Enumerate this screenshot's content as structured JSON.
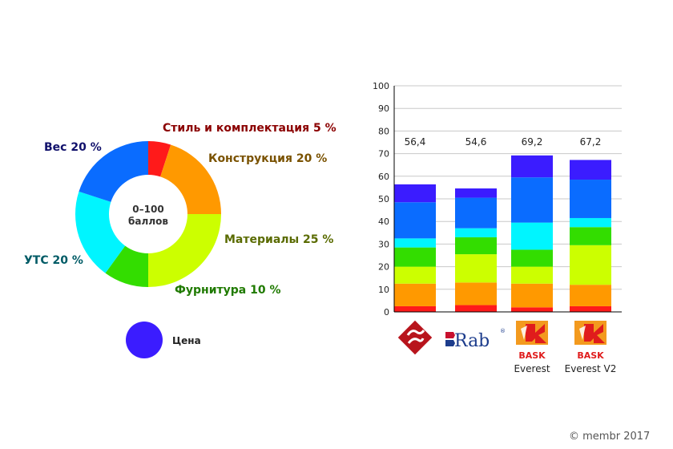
{
  "chart_data": [
    {
      "type": "pie",
      "center_label": [
        "0–100",
        "баллов"
      ],
      "slices": [
        {
          "label": "Стиль и комплектация 5 %",
          "value": 5,
          "color": "#ff1a1a",
          "label_color": "#8b0000"
        },
        {
          "label": "Конструкция 20 %",
          "value": 20,
          "color": "#ff9900",
          "label_color": "#7a5200"
        },
        {
          "label": "Материалы 25 %",
          "value": 25,
          "color": "#ccff00",
          "label_color": "#5a6b00"
        },
        {
          "label": "Фурнитура 10 %",
          "value": 10,
          "color": "#33dd00",
          "label_color": "#1f7a00"
        },
        {
          "label": "УТС 20 %",
          "value": 20,
          "color": "#00f5ff",
          "label_color": "#005b66"
        },
        {
          "label": "Вес 20 %",
          "value": 20,
          "color": "#0a6cff",
          "label_color": "#10106b"
        }
      ]
    },
    {
      "type": "bar",
      "stacked": true,
      "ylim": [
        0,
        100
      ],
      "yticks": [
        0,
        10,
        20,
        30,
        40,
        50,
        60,
        70,
        80,
        90,
        100
      ],
      "categories": [
        "",
        "",
        "Everest",
        "Everest V2"
      ],
      "brand_icons": [
        "red-diamond-logo-icon",
        "rab-logo-icon",
        "bask-logo-icon",
        "bask-logo-icon"
      ],
      "brand_text": {
        "rab": "Rab",
        "rab_mark": "®",
        "bask": "BASK"
      },
      "totals": [
        "56,4",
        "54,6",
        "69,2",
        "67,2"
      ],
      "series": [
        {
          "color": "#ff1a1a",
          "values": [
            2.5,
            3,
            2,
            2.5
          ]
        },
        {
          "color": "#ff9900",
          "values": [
            10,
            10,
            10.5,
            9.5
          ]
        },
        {
          "color": "#ccff00",
          "values": [
            7.5,
            12.5,
            7.5,
            17.5
          ]
        },
        {
          "color": "#33dd00",
          "values": [
            8.5,
            7.5,
            7.5,
            8
          ]
        },
        {
          "color": "#00f5ff",
          "values": [
            4,
            4,
            12,
            4
          ]
        },
        {
          "color": "#0a6cff",
          "values": [
            16,
            13.5,
            20,
            17
          ]
        },
        {
          "color": "#3b1cff",
          "values": [
            7.9,
            4.1,
            9.7,
            8.7
          ]
        }
      ]
    }
  ],
  "legend": {
    "label": "Цена",
    "color": "#3b1cff"
  },
  "copyright": {
    "prefix": "© membr",
    "suffix": " 2017"
  }
}
